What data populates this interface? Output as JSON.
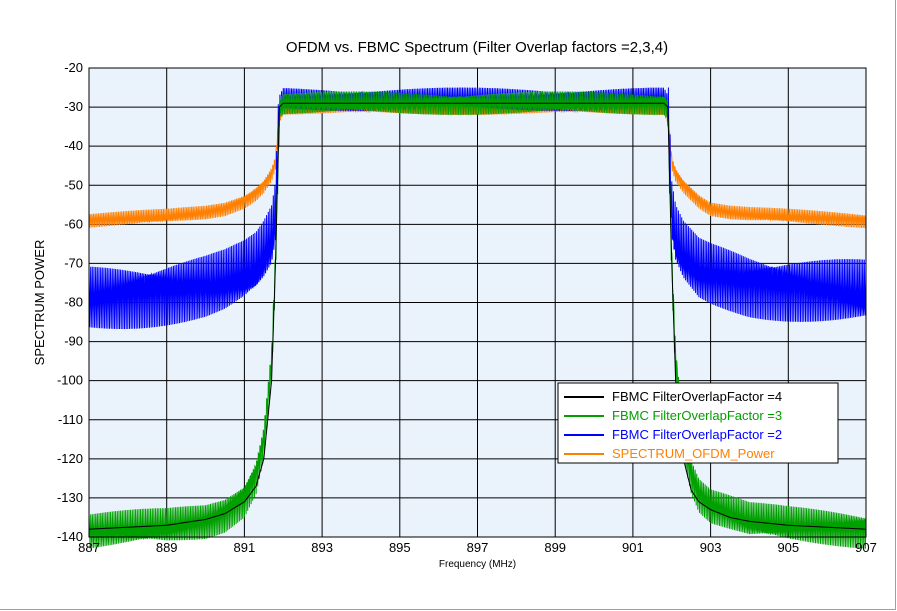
{
  "chart_data": {
    "type": "line",
    "title": "OFDM vs. FBMC Spectrum (Filter Overlap factors =2,3,4)",
    "xlabel": "Frequency (MHz)",
    "ylabel": "SPECTRUM POWER",
    "xlim": [
      887,
      907
    ],
    "ylim": [
      -140,
      -20
    ],
    "xticks": [
      "887",
      "889",
      "891",
      "893",
      "895",
      "897",
      "899",
      "901",
      "903",
      "905",
      "907"
    ],
    "yticks": [
      "-20",
      "-30",
      "-40",
      "-50",
      "-60",
      "-70",
      "-80",
      "-90",
      "-100",
      "-110",
      "-120",
      "-130",
      "-140"
    ],
    "grid": true,
    "legend_position": "bottom-right",
    "band_edges_mhz": [
      891.9,
      901.9
    ],
    "series": [
      {
        "name": "FBMC FilterOverlapFactor =4",
        "color": "#000000",
        "x": [
          887,
          888,
          889,
          890,
          890.5,
          891,
          891.3,
          891.5,
          891.7,
          891.8,
          891.9,
          892,
          897,
          901.8,
          901.9,
          902,
          902.1,
          902.3,
          902.5,
          902.7,
          903,
          903.5,
          904,
          905,
          906,
          907
        ],
        "y": [
          -138,
          -137.5,
          -137,
          -135.5,
          -134,
          -131,
          -127,
          -120,
          -100,
          -70,
          -30,
          -29,
          -29,
          -29,
          -30,
          -70,
          -100,
          -120,
          -128,
          -131,
          -133,
          -135,
          -136,
          -137,
          -137.5,
          -138
        ]
      },
      {
        "name": "FBMC FilterOverlapFactor =3",
        "color": "#00a000",
        "x": [
          887,
          888,
          889,
          890,
          890.5,
          891,
          891.3,
          891.5,
          891.7,
          891.8,
          891.9,
          892,
          897,
          901.8,
          901.9,
          902,
          902.1,
          902.3,
          902.5,
          902.7,
          903,
          903.5,
          904,
          905,
          906,
          907
        ],
        "y": [
          -138.5,
          -138,
          -137.5,
          -136,
          -134,
          -130,
          -124,
          -115,
          -95,
          -70,
          -30,
          -29,
          -29,
          -29,
          -30,
          -70,
          -95,
          -115,
          -124,
          -129,
          -132,
          -134,
          -136,
          -137,
          -137.5,
          -138
        ],
        "ripple": 5
      },
      {
        "name": "FBMC FilterOverlapFactor =2",
        "color": "#0000ff",
        "x": [
          887,
          888,
          889,
          890,
          890.5,
          891,
          891.3,
          891.5,
          891.7,
          891.8,
          891.9,
          892,
          897,
          901.8,
          901.9,
          902,
          902.1,
          902.3,
          902.5,
          902.7,
          903,
          904,
          905,
          906,
          907
        ],
        "y": [
          -79,
          -78,
          -77,
          -76,
          -75,
          -73,
          -71,
          -68,
          -64,
          -58,
          -30,
          -28,
          -28,
          -28,
          -30,
          -58,
          -64,
          -68,
          -70,
          -72,
          -73,
          -75,
          -76,
          -77,
          -78
        ],
        "ripple": 9
      },
      {
        "name": "SPECTRUM_OFDM_Power",
        "color": "#ff8000",
        "x": [
          887,
          888,
          889,
          889.5,
          890,
          890.5,
          891,
          891.3,
          891.5,
          891.7,
          891.8,
          891.9,
          892,
          897,
          901.8,
          901.9,
          902,
          902.1,
          902.3,
          902.5,
          902.7,
          903,
          903.5,
          904,
          905,
          906,
          907
        ],
        "y": [
          -59,
          -58.5,
          -58,
          -57.5,
          -57,
          -56,
          -54,
          -52,
          -50,
          -47,
          -44,
          -32,
          -30,
          -30,
          -30,
          -32,
          -44,
          -47,
          -50,
          -52,
          -54,
          -56,
          -57,
          -57.5,
          -58,
          -58.5,
          -59
        ],
        "ripple": 2
      }
    ]
  }
}
